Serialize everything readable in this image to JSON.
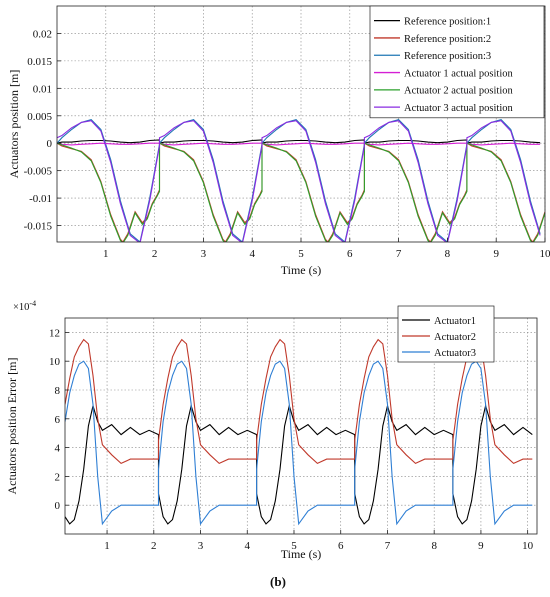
{
  "figure": {
    "panel_label": "(b)"
  },
  "chart_data": [
    {
      "type": "line",
      "title": "",
      "xlabel": "Time (s)",
      "ylabel": "Actuators position [m]",
      "xlim": [
        0,
        10
      ],
      "ylim": [
        -0.018,
        0.025
      ],
      "x_ticks": [
        1,
        2,
        3,
        4,
        5,
        6,
        7,
        8,
        9,
        10
      ],
      "x_tick_labels": [
        "1",
        "2",
        "3",
        "4",
        "5",
        "6",
        "7",
        "8",
        "9",
        "10"
      ],
      "y_ticks": [
        -0.015,
        -0.01,
        -0.005,
        0,
        0.005,
        0.01,
        0.015,
        0.02
      ],
      "y_tick_labels": [
        "-0.015",
        "-0.01",
        "-0.005",
        "0",
        "0.005",
        "0.01",
        "0.015",
        "0.02"
      ],
      "grid": true,
      "legend_position": "top-right",
      "period": 2.1,
      "series": [
        {
          "name": "Reference position:1",
          "color": "#000000",
          "x": [
            0,
            0.1,
            0.3,
            0.5,
            0.7,
            0.9,
            1.1,
            1.3,
            1.5,
            1.7,
            1.9,
            2.1
          ],
          "values": [
            0,
            0.0002,
            0.0002,
            0.0004,
            0.0005,
            0.0005,
            0.0004,
            0.0002,
            0.0001,
            0.0002,
            0.0005,
            0.0006
          ]
        },
        {
          "name": "Reference position:2",
          "color": "#c0392b",
          "x": [
            0,
            0.1,
            0.3,
            0.5,
            0.7,
            0.9,
            1.1,
            1.3,
            1.35,
            1.45,
            1.6,
            1.75,
            1.85,
            1.95,
            2.05,
            2.1
          ],
          "values": [
            0,
            -0.0005,
            -0.001,
            -0.0015,
            -0.003,
            -0.007,
            -0.013,
            -0.0175,
            -0.018,
            -0.0165,
            -0.0125,
            -0.0145,
            -0.0135,
            -0.011,
            -0.0095,
            -0.0085
          ]
        },
        {
          "name": "Reference position:3",
          "color": "#1f77b4",
          "x": [
            0,
            0.1,
            0.3,
            0.5,
            0.7,
            0.9,
            1.1,
            1.3,
            1.5,
            1.7,
            1.9,
            2.1
          ],
          "values": [
            0,
            0.001,
            0.0025,
            0.0038,
            0.0043,
            0.0025,
            -0.003,
            -0.0105,
            -0.0165,
            -0.018,
            -0.01,
            -0.0002
          ]
        },
        {
          "name": "Actuator 1 actual position",
          "color": "#d41fd4",
          "x": [
            0,
            0.1,
            0.3,
            0.5,
            0.7,
            0.9,
            1.1,
            1.3,
            1.5,
            1.7,
            1.9,
            2.1
          ],
          "values": [
            0,
            -0.0002,
            -0.0003,
            -0.0002,
            -0.0001,
            0,
            -0.0001,
            -0.0002,
            -0.0002,
            -0.0001,
            0,
            0
          ]
        },
        {
          "name": "Actuator 2 actual position",
          "color": "#2ca02c",
          "x": [
            0,
            0.1,
            0.3,
            0.5,
            0.7,
            0.9,
            1.1,
            1.3,
            1.35,
            1.45,
            1.6,
            1.75,
            1.85,
            1.95,
            2.05,
            2.1
          ],
          "values": [
            0,
            -0.0003,
            -0.0009,
            -0.0016,
            -0.0032,
            -0.0072,
            -0.0133,
            -0.0177,
            -0.0182,
            -0.0168,
            -0.0127,
            -0.0148,
            -0.0138,
            -0.0112,
            -0.0097,
            -0.0088
          ]
        },
        {
          "name": "Actuator 3 actual position",
          "color": "#8a2be2",
          "x": [
            0,
            0.1,
            0.3,
            0.5,
            0.7,
            0.9,
            1.1,
            1.3,
            1.5,
            1.7,
            1.9,
            2.1
          ],
          "values": [
            0.001,
            0.0014,
            0.0028,
            0.0038,
            0.0041,
            0.0022,
            -0.0035,
            -0.011,
            -0.0168,
            -0.0182,
            -0.0105,
            -0.0005
          ]
        }
      ]
    },
    {
      "type": "line",
      "title": "",
      "xlabel": "Time (s)",
      "ylabel": "Actuators position Error [m]",
      "y_multiplier_label": "×10",
      "y_multiplier_exponent": "-4",
      "xlim": [
        0.1,
        10.2
      ],
      "ylim": [
        -2,
        13
      ],
      "x_ticks": [
        1,
        2,
        3,
        4,
        5,
        6,
        7,
        8,
        9,
        10
      ],
      "x_tick_labels": [
        "1",
        "2",
        "3",
        "4",
        "5",
        "6",
        "7",
        "8",
        "9",
        "10"
      ],
      "y_ticks": [
        0,
        2,
        4,
        6,
        8,
        10,
        12
      ],
      "y_tick_labels": [
        "0",
        "2",
        "4",
        "6",
        "8",
        "10",
        "12"
      ],
      "grid": true,
      "legend_position": "top-center",
      "period": 2.1,
      "series": [
        {
          "name": "Actuator1",
          "color": "#000000",
          "x": [
            0,
            0.1,
            0.2,
            0.3,
            0.4,
            0.5,
            0.6,
            0.7,
            0.8,
            0.9,
            1.1,
            1.3,
            1.5,
            1.7,
            1.9,
            2.1
          ],
          "values": [
            0.8,
            -0.8,
            -1.3,
            -1.0,
            0.3,
            2.5,
            5.5,
            6.9,
            5.8,
            5.2,
            5.6,
            4.9,
            5.4,
            4.9,
            5.2,
            4.9
          ]
        },
        {
          "name": "Actuator2",
          "color": "#c0392b",
          "x": [
            0,
            0.1,
            0.2,
            0.3,
            0.4,
            0.5,
            0.6,
            0.7,
            0.8,
            0.9,
            1.1,
            1.3,
            1.5,
            1.7,
            1.9,
            2.1
          ],
          "values": [
            4.5,
            7.0,
            8.8,
            10.3,
            11.0,
            11.5,
            11.2,
            9.0,
            6.0,
            4.2,
            3.5,
            2.9,
            3.2,
            3.2,
            3.2,
            3.2
          ]
        },
        {
          "name": "Actuator3",
          "color": "#2f7fd4",
          "x": [
            0,
            0.1,
            0.2,
            0.3,
            0.4,
            0.5,
            0.6,
            0.7,
            0.8,
            0.9,
            1.1,
            1.3,
            1.5,
            1.7,
            1.9,
            2.1
          ],
          "values": [
            2.5,
            5.8,
            7.8,
            9.0,
            9.8,
            10.0,
            9.5,
            7.0,
            2.0,
            -1.3,
            -0.4,
            0.0,
            0.0,
            0.0,
            0.0,
            0.0
          ]
        }
      ]
    }
  ]
}
